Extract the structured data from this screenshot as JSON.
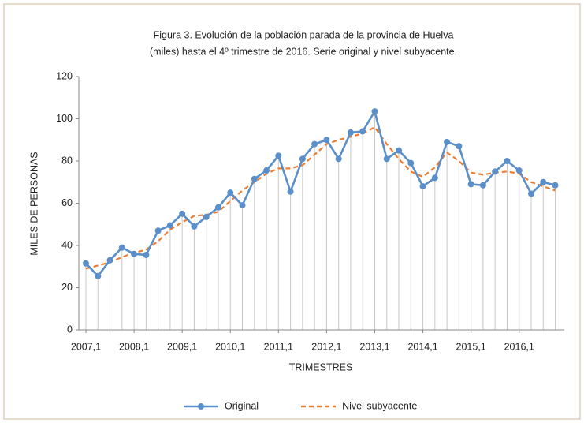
{
  "chart_data": {
    "type": "line",
    "title": [
      "Figura 3. Evolución  de la población  parada  de la provincia  de Huelva",
      "(miles)  hasta  el 4º trimestre  de 2016. Serie original  y nivel subyacente."
    ],
    "xlabel": "TRIMESTRES",
    "ylabel": "MILES DE PERSONAS",
    "categories": [
      "2007,1",
      null,
      null,
      null,
      "2008,1",
      null,
      null,
      null,
      "2009,1",
      null,
      null,
      null,
      "2010,1",
      null,
      null,
      null,
      "2011,1",
      null,
      null,
      null,
      "2012,1",
      null,
      null,
      null,
      "2013,1",
      null,
      null,
      null,
      "2014,1",
      null,
      null,
      null,
      "2015,1",
      null,
      null,
      null,
      "2016,1",
      null,
      null,
      null
    ],
    "series": [
      {
        "name": "Original",
        "color": "#5b8fc9",
        "dashed": false,
        "markers": true,
        "drop_lines": true,
        "values": [
          31.5,
          25.5,
          33,
          39,
          36,
          35.5,
          47,
          49.5,
          55,
          49,
          53.5,
          58,
          65,
          59,
          71.5,
          75.5,
          82.5,
          65.5,
          81,
          88,
          90,
          81,
          93.5,
          94,
          103.5,
          81,
          85,
          79,
          68,
          72,
          89,
          87,
          69,
          68.5,
          75,
          80,
          75.5,
          64.5,
          70,
          68.5
        ]
      },
      {
        "name": "Nivel subyacente",
        "color": "#ed7d31",
        "dashed": true,
        "markers": false,
        "drop_lines": false,
        "values": [
          29,
          30.5,
          32,
          34.5,
          36.5,
          38,
          42,
          47.5,
          51,
          54,
          54.5,
          56,
          61,
          66,
          70,
          74,
          76.5,
          76.5,
          78,
          83,
          88,
          90,
          91.5,
          93,
          96,
          88,
          81,
          75,
          72.5,
          77,
          84,
          80,
          74.5,
          73.5,
          74.5,
          75,
          74,
          70,
          68,
          66
        ]
      }
    ],
    "ylim": [
      0,
      120
    ],
    "yticks": [
      0,
      20,
      40,
      60,
      80,
      100,
      120
    ],
    "grid": false,
    "legend": "bottom"
  }
}
